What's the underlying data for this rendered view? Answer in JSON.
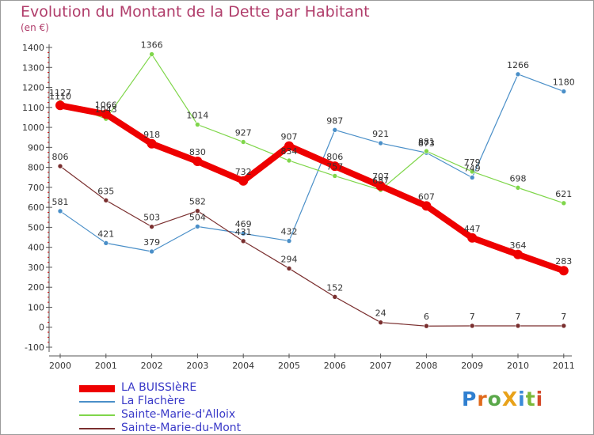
{
  "title": "Evolution du Montant de la Dette par Habitant",
  "subtitle": "(en €)",
  "logo": {
    "text": "ProXiti",
    "letters": [
      "P",
      "r",
      "o",
      "X",
      "i",
      "t",
      "i"
    ],
    "colors": [
      "#2f7fd0",
      "#e06a1c",
      "#5aa84a",
      "#e8a21a",
      "#3a8ad8",
      "#7bb83a",
      "#d44a2a"
    ]
  },
  "chart_data": {
    "type": "line",
    "categories": [
      "2000",
      "2001",
      "2002",
      "2003",
      "2004",
      "2005",
      "2006",
      "2007",
      "2008",
      "2009",
      "2010",
      "2011"
    ],
    "ylim": [
      -100,
      1400
    ],
    "yticks": [
      "-100",
      "0",
      "100",
      "200",
      "300",
      "400",
      "500",
      "600",
      "700",
      "800",
      "900",
      "1000",
      "1100",
      "1200",
      "1300",
      "1400"
    ],
    "grid": false,
    "legend_position": "bottom-left",
    "series": [
      {
        "name": "LA BUISSIèRE",
        "color": "#ee0000",
        "width": 8,
        "marker": 6,
        "values": [
          1110,
          1066,
          918,
          830,
          732,
          907,
          806,
          707,
          607,
          447,
          364,
          283
        ],
        "labels": [
          "1110",
          "1066",
          "918",
          "830",
          "732",
          "907",
          "806",
          "707",
          "607",
          "447",
          "364",
          "283"
        ]
      },
      {
        "name": "La Flachère",
        "color": "#4a8fc8",
        "width": 1.2,
        "marker": 3,
        "values": [
          581,
          421,
          379,
          504,
          469,
          432,
          987,
          921,
          873,
          749,
          1266,
          1180
        ],
        "labels": [
          "581",
          "421",
          "379",
          "504",
          "469",
          "432",
          "987",
          "921",
          "873",
          "749",
          "1266",
          "1180"
        ]
      },
      {
        "name": "Sainte-Marie-d'Alloix",
        "color": "#7fd64a",
        "width": 1.2,
        "marker": 3,
        "values": [
          1127,
          1043,
          1366,
          1014,
          927,
          834,
          757,
          687,
          881,
          779,
          698,
          621
        ],
        "labels": [
          "1127",
          "1043",
          "1366",
          "1014",
          "927",
          "834",
          "757",
          "687",
          "881",
          "779",
          "698",
          "621"
        ]
      },
      {
        "name": "Sainte-Marie-du-Mont",
        "color": "#7a2f2f",
        "width": 1.2,
        "marker": 3,
        "values": [
          806,
          635,
          503,
          582,
          431,
          294,
          152,
          24,
          6,
          7,
          7,
          7
        ],
        "labels": [
          "806",
          "635",
          "503",
          "582",
          "431",
          "294",
          "152",
          "24",
          "6",
          "7",
          "7",
          "7"
        ]
      }
    ]
  }
}
